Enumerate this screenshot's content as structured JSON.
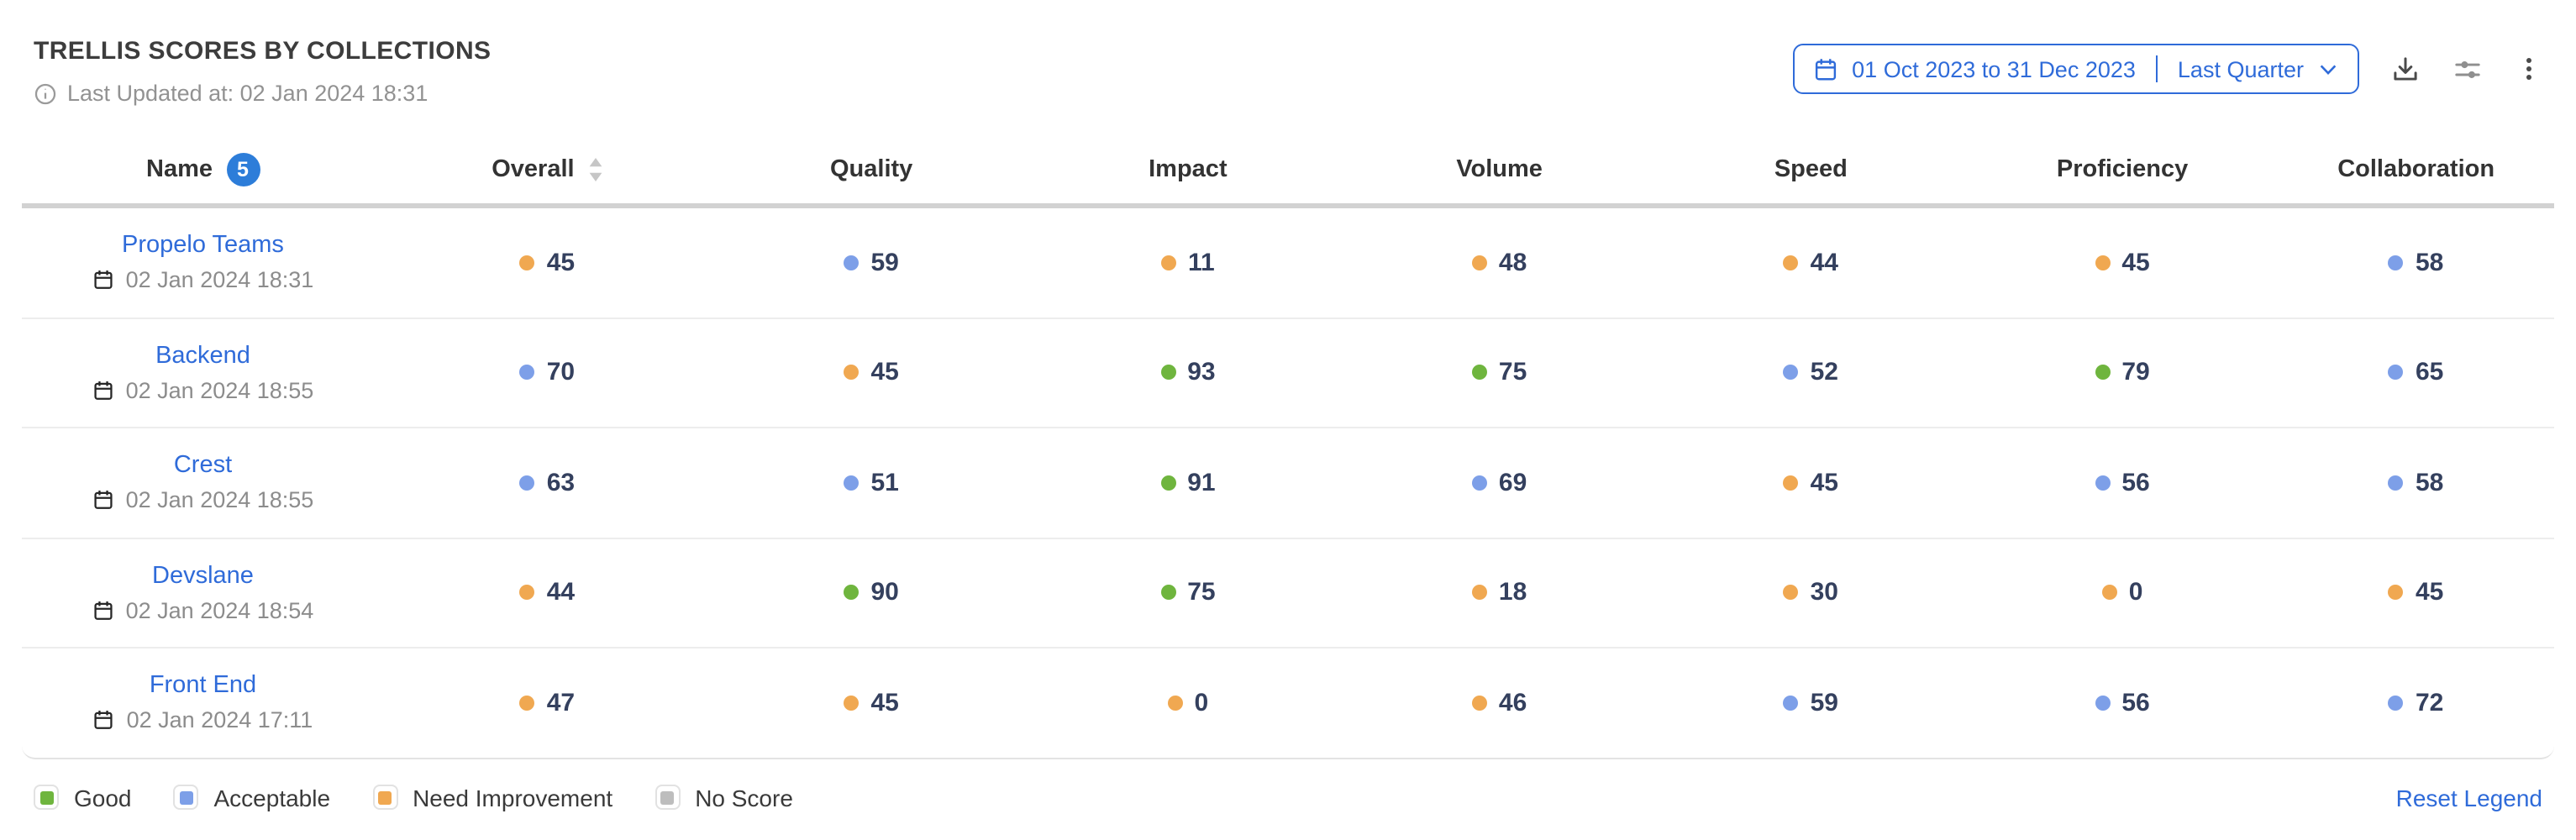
{
  "header": {
    "title": "TRELLIS SCORES BY COLLECTIONS",
    "last_updated": "Last Updated at: 02 Jan 2024 18:31"
  },
  "controls": {
    "date_range": {
      "range_text": "01 Oct 2023 to 31 Dec 2023",
      "preset_label": "Last Quarter"
    }
  },
  "table": {
    "columns": [
      {
        "label": "Name",
        "badge": "5"
      },
      {
        "label": "Overall",
        "sortable": true
      },
      {
        "label": "Quality"
      },
      {
        "label": "Impact"
      },
      {
        "label": "Volume"
      },
      {
        "label": "Speed"
      },
      {
        "label": "Proficiency"
      },
      {
        "label": "Collaboration"
      }
    ],
    "rows": [
      {
        "name": "Propelo Teams",
        "updated": "02 Jan 2024 18:31",
        "scores": [
          {
            "value": "45",
            "status": "need-improvement"
          },
          {
            "value": "59",
            "status": "acceptable"
          },
          {
            "value": "11",
            "status": "need-improvement"
          },
          {
            "value": "48",
            "status": "need-improvement"
          },
          {
            "value": "44",
            "status": "need-improvement"
          },
          {
            "value": "45",
            "status": "need-improvement"
          },
          {
            "value": "58",
            "status": "acceptable"
          }
        ]
      },
      {
        "name": "Backend",
        "updated": "02 Jan 2024 18:55",
        "scores": [
          {
            "value": "70",
            "status": "acceptable"
          },
          {
            "value": "45",
            "status": "need-improvement"
          },
          {
            "value": "93",
            "status": "good"
          },
          {
            "value": "75",
            "status": "good"
          },
          {
            "value": "52",
            "status": "acceptable"
          },
          {
            "value": "79",
            "status": "good"
          },
          {
            "value": "65",
            "status": "acceptable"
          }
        ]
      },
      {
        "name": "Crest",
        "updated": "02 Jan 2024 18:55",
        "scores": [
          {
            "value": "63",
            "status": "acceptable"
          },
          {
            "value": "51",
            "status": "acceptable"
          },
          {
            "value": "91",
            "status": "good"
          },
          {
            "value": "69",
            "status": "acceptable"
          },
          {
            "value": "45",
            "status": "need-improvement"
          },
          {
            "value": "56",
            "status": "acceptable"
          },
          {
            "value": "58",
            "status": "acceptable"
          }
        ]
      },
      {
        "name": "Devslane",
        "updated": "02 Jan 2024 18:54",
        "scores": [
          {
            "value": "44",
            "status": "need-improvement"
          },
          {
            "value": "90",
            "status": "good"
          },
          {
            "value": "75",
            "status": "good"
          },
          {
            "value": "18",
            "status": "need-improvement"
          },
          {
            "value": "30",
            "status": "need-improvement"
          },
          {
            "value": "0",
            "status": "need-improvement"
          },
          {
            "value": "45",
            "status": "need-improvement"
          }
        ]
      },
      {
        "name": "Front End",
        "updated": "02 Jan 2024 17:11",
        "scores": [
          {
            "value": "47",
            "status": "need-improvement"
          },
          {
            "value": "45",
            "status": "need-improvement"
          },
          {
            "value": "0",
            "status": "need-improvement"
          },
          {
            "value": "46",
            "status": "need-improvement"
          },
          {
            "value": "59",
            "status": "acceptable"
          },
          {
            "value": "56",
            "status": "acceptable"
          },
          {
            "value": "72",
            "status": "acceptable"
          }
        ]
      }
    ]
  },
  "legend": {
    "items": [
      {
        "label": "Good",
        "status": "good"
      },
      {
        "label": "Acceptable",
        "status": "acceptable"
      },
      {
        "label": "Need Improvement",
        "status": "need-improvement"
      },
      {
        "label": "No Score",
        "status": "no-score"
      }
    ],
    "reset_label": "Reset Legend"
  },
  "colors": {
    "good": "#6fb53e",
    "acceptable": "#7d9fe8",
    "need-improvement": "#f0a851",
    "no-score": "#bdbdbd",
    "accent_blue": "#2f6bd9",
    "badge_blue": "#2d7dd9",
    "score_text": "#34405e"
  }
}
